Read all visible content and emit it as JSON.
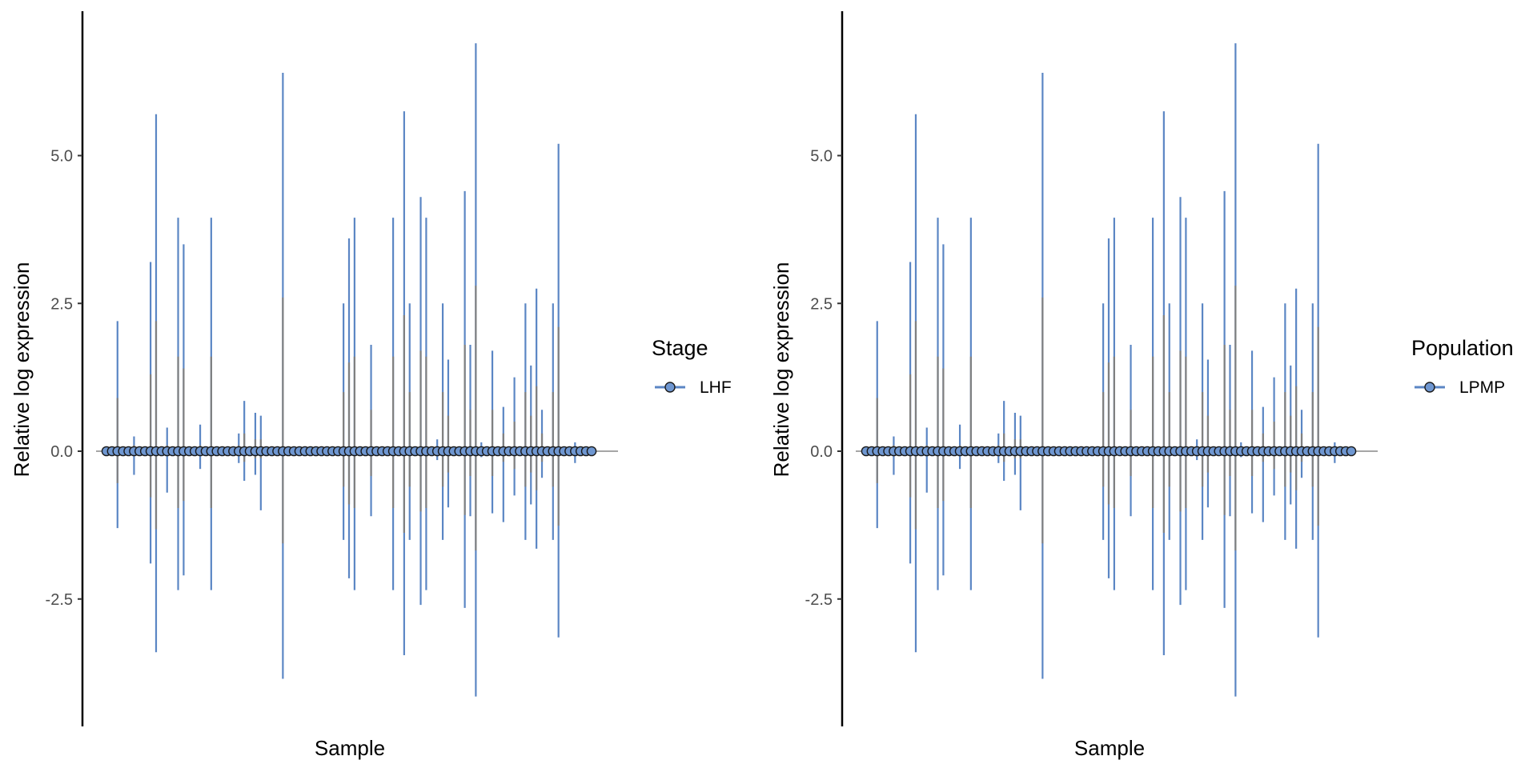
{
  "chart_data": [
    {
      "type": "scatter",
      "ylabel": "Relative log expression",
      "xlabel": "Sample",
      "yticks": [
        -2.5,
        0.0,
        2.5,
        5.0
      ],
      "ytick_labels": [
        "-2.5",
        "0.0",
        "2.5",
        "5.0"
      ],
      "ylim": [
        -4.6,
        7.4
      ],
      "legend": {
        "title": "Stage",
        "entries": [
          "LHF"
        ],
        "placement": "right"
      },
      "colors": {
        "whisker": "#5b86c4",
        "box": "#808080",
        "point_fill": "#6f97d1",
        "point_stroke": "#1a1a1a",
        "zero_line": "#a6a6a6"
      },
      "samples": [
        {
          "upper": 0.0,
          "lower": 0.0,
          "box": 0.0
        },
        {
          "upper": 0.0,
          "lower": 0.0,
          "box": 0.0
        },
        {
          "upper": 2.2,
          "lower": -1.3,
          "box": 0.9
        },
        {
          "upper": 0.0,
          "lower": 0.0,
          "box": 0.0
        },
        {
          "upper": 0.0,
          "lower": 0.0,
          "box": 0.0
        },
        {
          "upper": 0.25,
          "lower": -0.4,
          "box": 0.1
        },
        {
          "upper": 0.0,
          "lower": 0.0,
          "box": 0.0
        },
        {
          "upper": 0.0,
          "lower": 0.0,
          "box": 0.0
        },
        {
          "upper": 3.2,
          "lower": -1.9,
          "box": 1.3
        },
        {
          "upper": 5.7,
          "lower": -3.4,
          "box": 2.2
        },
        {
          "upper": 0.0,
          "lower": 0.0,
          "box": 0.0
        },
        {
          "upper": 0.4,
          "lower": -0.7,
          "box": 0.1
        },
        {
          "upper": 0.0,
          "lower": 0.0,
          "box": 0.0
        },
        {
          "upper": 3.95,
          "lower": -2.35,
          "box": 1.6
        },
        {
          "upper": 3.5,
          "lower": -2.1,
          "box": 1.4
        },
        {
          "upper": 0.0,
          "lower": 0.0,
          "box": 0.0
        },
        {
          "upper": 0.0,
          "lower": 0.0,
          "box": 0.0
        },
        {
          "upper": 0.45,
          "lower": -0.3,
          "box": 0.1
        },
        {
          "upper": 0.0,
          "lower": 0.0,
          "box": 0.0
        },
        {
          "upper": 3.95,
          "lower": -2.35,
          "box": 1.6
        },
        {
          "upper": 0.0,
          "lower": 0.0,
          "box": 0.0
        },
        {
          "upper": 0.0,
          "lower": 0.0,
          "box": 0.0
        },
        {
          "upper": 0.0,
          "lower": 0.0,
          "box": 0.0
        },
        {
          "upper": 0.0,
          "lower": 0.0,
          "box": 0.0
        },
        {
          "upper": 0.3,
          "lower": -0.2,
          "box": 0.1
        },
        {
          "upper": 0.85,
          "lower": -0.5,
          "box": 0.3
        },
        {
          "upper": 0.0,
          "lower": 0.0,
          "box": 0.0
        },
        {
          "upper": 0.65,
          "lower": -0.4,
          "box": 0.2
        },
        {
          "upper": 0.6,
          "lower": -1.0,
          "box": 0.2
        },
        {
          "upper": 0.0,
          "lower": 0.0,
          "box": 0.0
        },
        {
          "upper": 0.0,
          "lower": 0.0,
          "box": 0.0
        },
        {
          "upper": 0.0,
          "lower": 0.0,
          "box": 0.0
        },
        {
          "upper": 6.4,
          "lower": -3.85,
          "box": 2.6
        },
        {
          "upper": 0.0,
          "lower": 0.0,
          "box": 0.0
        },
        {
          "upper": 0.0,
          "lower": 0.0,
          "box": 0.0
        },
        {
          "upper": 0.0,
          "lower": 0.0,
          "box": 0.0
        },
        {
          "upper": 0.0,
          "lower": 0.0,
          "box": 0.0
        },
        {
          "upper": 0.0,
          "lower": 0.0,
          "box": 0.0
        },
        {
          "upper": 0.0,
          "lower": 0.0,
          "box": 0.0
        },
        {
          "upper": 0.0,
          "lower": 0.0,
          "box": 0.0
        },
        {
          "upper": 0.0,
          "lower": 0.0,
          "box": 0.0
        },
        {
          "upper": 0.0,
          "lower": 0.0,
          "box": 0.0
        },
        {
          "upper": 0.0,
          "lower": 0.0,
          "box": 0.0
        },
        {
          "upper": 2.5,
          "lower": -1.5,
          "box": 1.0
        },
        {
          "upper": 3.6,
          "lower": -2.15,
          "box": 1.5
        },
        {
          "upper": 3.95,
          "lower": -2.35,
          "box": 1.6
        },
        {
          "upper": 0.0,
          "lower": 0.0,
          "box": 0.0
        },
        {
          "upper": 0.0,
          "lower": 0.0,
          "box": 0.0
        },
        {
          "upper": 1.8,
          "lower": -1.1,
          "box": 0.7
        },
        {
          "upper": 0.0,
          "lower": 0.0,
          "box": 0.0
        },
        {
          "upper": 0.0,
          "lower": 0.0,
          "box": 0.0
        },
        {
          "upper": 0.0,
          "lower": 0.0,
          "box": 0.0
        },
        {
          "upper": 3.95,
          "lower": -2.35,
          "box": 1.6
        },
        {
          "upper": 0.0,
          "lower": 0.0,
          "box": 0.0
        },
        {
          "upper": 5.75,
          "lower": -3.45,
          "box": 2.3
        },
        {
          "upper": 2.5,
          "lower": -1.5,
          "box": 1.0
        },
        {
          "upper": 0.0,
          "lower": 0.0,
          "box": 0.0
        },
        {
          "upper": 4.3,
          "lower": -2.6,
          "box": 1.7
        },
        {
          "upper": 3.95,
          "lower": -2.35,
          "box": 1.6
        },
        {
          "upper": 0.0,
          "lower": 0.0,
          "box": 0.0
        },
        {
          "upper": 0.2,
          "lower": -0.15,
          "box": 0.05
        },
        {
          "upper": 2.5,
          "lower": -1.5,
          "box": 1.0
        },
        {
          "upper": 1.55,
          "lower": -0.95,
          "box": 0.6
        },
        {
          "upper": 0.0,
          "lower": 0.0,
          "box": 0.0
        },
        {
          "upper": 0.0,
          "lower": 0.0,
          "box": 0.0
        },
        {
          "upper": 4.4,
          "lower": -2.65,
          "box": 1.8
        },
        {
          "upper": 1.8,
          "lower": -1.1,
          "box": 0.7
        },
        {
          "upper": 6.9,
          "lower": -4.15,
          "box": 2.8
        },
        {
          "upper": 0.15,
          "lower": -0.1,
          "box": 0.05
        },
        {
          "upper": 0.0,
          "lower": 0.0,
          "box": 0.0
        },
        {
          "upper": 1.7,
          "lower": -1.05,
          "box": 0.7
        },
        {
          "upper": 0.0,
          "lower": 0.0,
          "box": 0.0
        },
        {
          "upper": 0.75,
          "lower": -1.2,
          "box": 0.3
        },
        {
          "upper": 0.0,
          "lower": 0.0,
          "box": 0.0
        },
        {
          "upper": 1.25,
          "lower": -0.75,
          "box": 0.5
        },
        {
          "upper": 0.0,
          "lower": 0.0,
          "box": 0.0
        },
        {
          "upper": 2.5,
          "lower": -1.5,
          "box": 1.0
        },
        {
          "upper": 1.45,
          "lower": -0.9,
          "box": 0.6
        },
        {
          "upper": 2.75,
          "lower": -1.65,
          "box": 1.1
        },
        {
          "upper": 0.7,
          "lower": -0.45,
          "box": 0.3
        },
        {
          "upper": 0.0,
          "lower": 0.0,
          "box": 0.0
        },
        {
          "upper": 2.5,
          "lower": -1.5,
          "box": 1.0
        },
        {
          "upper": 5.2,
          "lower": -3.15,
          "box": 2.1
        },
        {
          "upper": 0.0,
          "lower": 0.0,
          "box": 0.0
        },
        {
          "upper": 0.0,
          "lower": 0.0,
          "box": 0.0
        },
        {
          "upper": 0.15,
          "lower": -0.2,
          "box": 0.05
        },
        {
          "upper": 0.0,
          "lower": 0.0,
          "box": 0.0
        },
        {
          "upper": 0.0,
          "lower": 0.0,
          "box": 0.0
        },
        {
          "upper": 0.0,
          "lower": 0.0,
          "box": 0.0
        }
      ]
    },
    {
      "type": "scatter",
      "ylabel": "Relative log expression",
      "xlabel": "Sample",
      "yticks": [
        -2.5,
        0.0,
        2.5,
        5.0
      ],
      "ytick_labels": [
        "-2.5",
        "0.0",
        "2.5",
        "5.0"
      ],
      "ylim": [
        -4.6,
        7.4
      ],
      "legend": {
        "title": "Population",
        "entries": [
          "LPMP"
        ],
        "placement": "right"
      },
      "colors": {
        "whisker": "#5b86c4",
        "box": "#808080",
        "point_fill": "#6f97d1",
        "point_stroke": "#1a1a1a",
        "zero_line": "#a6a6a6"
      },
      "samples": [
        {
          "upper": 0.0,
          "lower": 0.0,
          "box": 0.0
        },
        {
          "upper": 0.0,
          "lower": 0.0,
          "box": 0.0
        },
        {
          "upper": 2.2,
          "lower": -1.3,
          "box": 0.9
        },
        {
          "upper": 0.0,
          "lower": 0.0,
          "box": 0.0
        },
        {
          "upper": 0.0,
          "lower": 0.0,
          "box": 0.0
        },
        {
          "upper": 0.25,
          "lower": -0.4,
          "box": 0.1
        },
        {
          "upper": 0.0,
          "lower": 0.0,
          "box": 0.0
        },
        {
          "upper": 0.0,
          "lower": 0.0,
          "box": 0.0
        },
        {
          "upper": 3.2,
          "lower": -1.9,
          "box": 1.3
        },
        {
          "upper": 5.7,
          "lower": -3.4,
          "box": 2.2
        },
        {
          "upper": 0.0,
          "lower": 0.0,
          "box": 0.0
        },
        {
          "upper": 0.4,
          "lower": -0.7,
          "box": 0.1
        },
        {
          "upper": 0.0,
          "lower": 0.0,
          "box": 0.0
        },
        {
          "upper": 3.95,
          "lower": -2.35,
          "box": 1.6
        },
        {
          "upper": 3.5,
          "lower": -2.1,
          "box": 1.4
        },
        {
          "upper": 0.0,
          "lower": 0.0,
          "box": 0.0
        },
        {
          "upper": 0.0,
          "lower": 0.0,
          "box": 0.0
        },
        {
          "upper": 0.45,
          "lower": -0.3,
          "box": 0.1
        },
        {
          "upper": 0.0,
          "lower": 0.0,
          "box": 0.0
        },
        {
          "upper": 3.95,
          "lower": -2.35,
          "box": 1.6
        },
        {
          "upper": 0.0,
          "lower": 0.0,
          "box": 0.0
        },
        {
          "upper": 0.0,
          "lower": 0.0,
          "box": 0.0
        },
        {
          "upper": 0.0,
          "lower": 0.0,
          "box": 0.0
        },
        {
          "upper": 0.0,
          "lower": 0.0,
          "box": 0.0
        },
        {
          "upper": 0.3,
          "lower": -0.2,
          "box": 0.1
        },
        {
          "upper": 0.85,
          "lower": -0.5,
          "box": 0.3
        },
        {
          "upper": 0.0,
          "lower": 0.0,
          "box": 0.0
        },
        {
          "upper": 0.65,
          "lower": -0.4,
          "box": 0.2
        },
        {
          "upper": 0.6,
          "lower": -1.0,
          "box": 0.2
        },
        {
          "upper": 0.0,
          "lower": 0.0,
          "box": 0.0
        },
        {
          "upper": 0.0,
          "lower": 0.0,
          "box": 0.0
        },
        {
          "upper": 0.0,
          "lower": 0.0,
          "box": 0.0
        },
        {
          "upper": 6.4,
          "lower": -3.85,
          "box": 2.6
        },
        {
          "upper": 0.0,
          "lower": 0.0,
          "box": 0.0
        },
        {
          "upper": 0.0,
          "lower": 0.0,
          "box": 0.0
        },
        {
          "upper": 0.0,
          "lower": 0.0,
          "box": 0.0
        },
        {
          "upper": 0.0,
          "lower": 0.0,
          "box": 0.0
        },
        {
          "upper": 0.0,
          "lower": 0.0,
          "box": 0.0
        },
        {
          "upper": 0.0,
          "lower": 0.0,
          "box": 0.0
        },
        {
          "upper": 0.0,
          "lower": 0.0,
          "box": 0.0
        },
        {
          "upper": 0.0,
          "lower": 0.0,
          "box": 0.0
        },
        {
          "upper": 0.0,
          "lower": 0.0,
          "box": 0.0
        },
        {
          "upper": 0.0,
          "lower": 0.0,
          "box": 0.0
        },
        {
          "upper": 2.5,
          "lower": -1.5,
          "box": 1.0
        },
        {
          "upper": 3.6,
          "lower": -2.15,
          "box": 1.5
        },
        {
          "upper": 3.95,
          "lower": -2.35,
          "box": 1.6
        },
        {
          "upper": 0.0,
          "lower": 0.0,
          "box": 0.0
        },
        {
          "upper": 0.0,
          "lower": 0.0,
          "box": 0.0
        },
        {
          "upper": 1.8,
          "lower": -1.1,
          "box": 0.7
        },
        {
          "upper": 0.0,
          "lower": 0.0,
          "box": 0.0
        },
        {
          "upper": 0.0,
          "lower": 0.0,
          "box": 0.0
        },
        {
          "upper": 0.0,
          "lower": 0.0,
          "box": 0.0
        },
        {
          "upper": 3.95,
          "lower": -2.35,
          "box": 1.6
        },
        {
          "upper": 0.0,
          "lower": 0.0,
          "box": 0.0
        },
        {
          "upper": 5.75,
          "lower": -3.45,
          "box": 2.3
        },
        {
          "upper": 2.5,
          "lower": -1.5,
          "box": 1.0
        },
        {
          "upper": 0.0,
          "lower": 0.0,
          "box": 0.0
        },
        {
          "upper": 4.3,
          "lower": -2.6,
          "box": 1.7
        },
        {
          "upper": 3.95,
          "lower": -2.35,
          "box": 1.6
        },
        {
          "upper": 0.0,
          "lower": 0.0,
          "box": 0.0
        },
        {
          "upper": 0.2,
          "lower": -0.15,
          "box": 0.05
        },
        {
          "upper": 2.5,
          "lower": -1.5,
          "box": 1.0
        },
        {
          "upper": 1.55,
          "lower": -0.95,
          "box": 0.6
        },
        {
          "upper": 0.0,
          "lower": 0.0,
          "box": 0.0
        },
        {
          "upper": 0.0,
          "lower": 0.0,
          "box": 0.0
        },
        {
          "upper": 4.4,
          "lower": -2.65,
          "box": 1.8
        },
        {
          "upper": 1.8,
          "lower": -1.1,
          "box": 0.7
        },
        {
          "upper": 6.9,
          "lower": -4.15,
          "box": 2.8
        },
        {
          "upper": 0.15,
          "lower": -0.1,
          "box": 0.05
        },
        {
          "upper": 0.0,
          "lower": 0.0,
          "box": 0.0
        },
        {
          "upper": 1.7,
          "lower": -1.05,
          "box": 0.7
        },
        {
          "upper": 0.0,
          "lower": 0.0,
          "box": 0.0
        },
        {
          "upper": 0.75,
          "lower": -1.2,
          "box": 0.3
        },
        {
          "upper": 0.0,
          "lower": 0.0,
          "box": 0.0
        },
        {
          "upper": 1.25,
          "lower": -0.75,
          "box": 0.5
        },
        {
          "upper": 0.0,
          "lower": 0.0,
          "box": 0.0
        },
        {
          "upper": 2.5,
          "lower": -1.5,
          "box": 1.0
        },
        {
          "upper": 1.45,
          "lower": -0.9,
          "box": 0.6
        },
        {
          "upper": 2.75,
          "lower": -1.65,
          "box": 1.1
        },
        {
          "upper": 0.7,
          "lower": -0.45,
          "box": 0.3
        },
        {
          "upper": 0.0,
          "lower": 0.0,
          "box": 0.0
        },
        {
          "upper": 2.5,
          "lower": -1.5,
          "box": 1.0
        },
        {
          "upper": 5.2,
          "lower": -3.15,
          "box": 2.1
        },
        {
          "upper": 0.0,
          "lower": 0.0,
          "box": 0.0
        },
        {
          "upper": 0.0,
          "lower": 0.0,
          "box": 0.0
        },
        {
          "upper": 0.15,
          "lower": -0.2,
          "box": 0.05
        },
        {
          "upper": 0.0,
          "lower": 0.0,
          "box": 0.0
        },
        {
          "upper": 0.0,
          "lower": 0.0,
          "box": 0.0
        },
        {
          "upper": 0.0,
          "lower": 0.0,
          "box": 0.0
        }
      ]
    }
  ]
}
